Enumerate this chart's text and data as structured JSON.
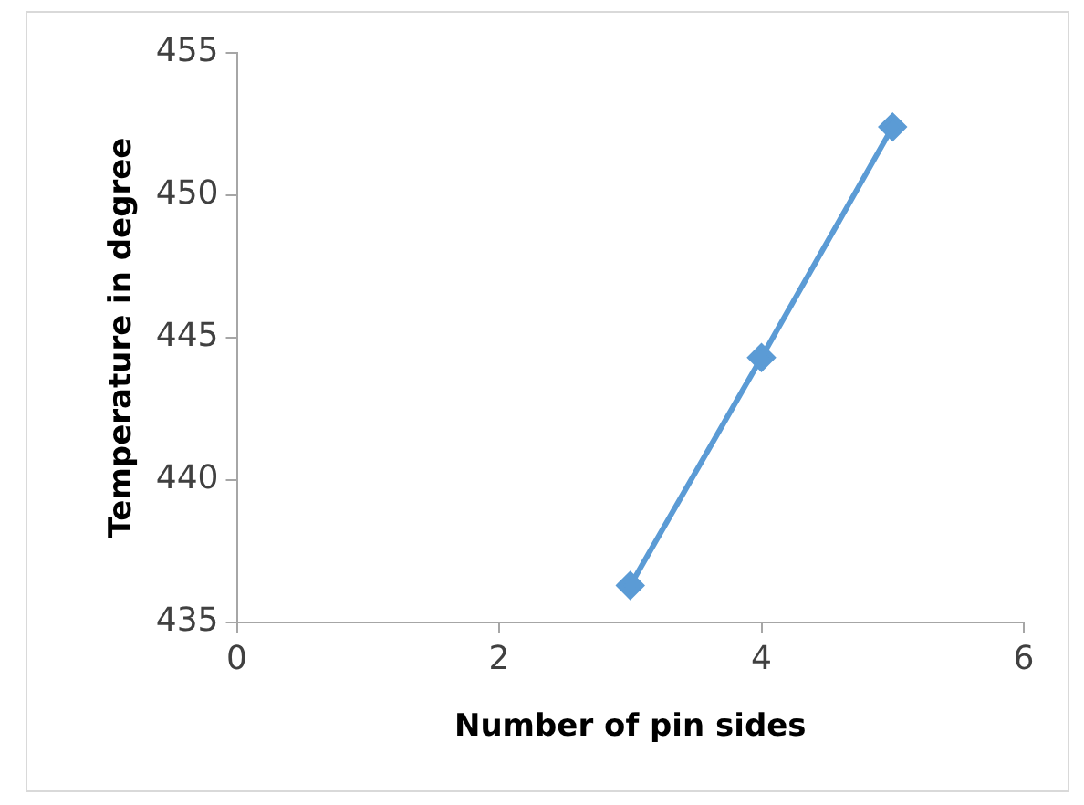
{
  "chart_data": {
    "type": "line",
    "xlabel": "Number of pin sides",
    "ylabel": "Temperature in degree",
    "x": [
      3,
      4,
      5
    ],
    "series": [
      {
        "color": "#5b9bd5",
        "values": [
          436.3,
          444.3,
          452.4
        ]
      }
    ],
    "xlim": [
      0,
      6
    ],
    "xticks": [
      0,
      2,
      4,
      6
    ],
    "ylim": [
      435,
      455
    ],
    "yticks": [
      435,
      440,
      445,
      450,
      455
    ],
    "grid": false,
    "legend": false,
    "marker": "diamond",
    "line_style": "solid"
  }
}
